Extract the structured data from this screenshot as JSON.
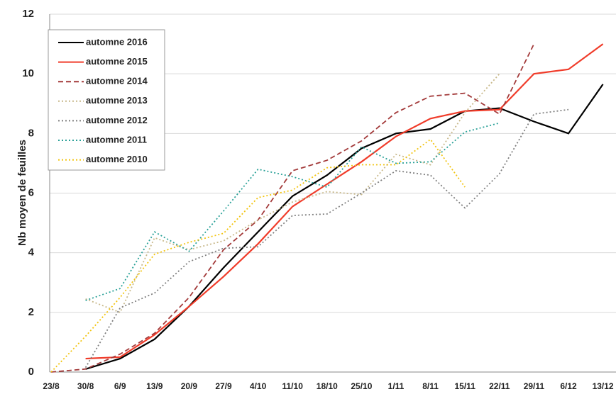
{
  "chart_data": {
    "type": "line",
    "y_label": "Nb moyen de feuilles",
    "categories": [
      "23/8",
      "30/8",
      "6/9",
      "13/9",
      "20/9",
      "27/9",
      "4/10",
      "11/10",
      "18/10",
      "25/10",
      "1/11",
      "8/11",
      "15/11",
      "22/11",
      "29/11",
      "6/12",
      "13/12"
    ],
    "ylim": [
      0,
      12
    ],
    "yticks": [
      0,
      2,
      4,
      6,
      8,
      10,
      12
    ],
    "grid": true,
    "legend": "upper left",
    "series": [
      {
        "name": "automne 2016",
        "color": "#000000",
        "dash": "solid",
        "values": [
          null,
          0.1,
          0.45,
          1.1,
          2.2,
          3.5,
          4.7,
          5.9,
          6.6,
          7.5,
          8.0,
          8.15,
          8.75,
          8.85,
          8.4,
          8.0,
          9.65
        ]
      },
      {
        "name": "automne 2015",
        "color": "#f03c2a",
        "dash": "solid",
        "values": [
          null,
          0.45,
          0.5,
          1.25,
          2.2,
          3.2,
          4.3,
          5.55,
          6.3,
          7.05,
          7.9,
          8.5,
          8.75,
          8.8,
          10.0,
          10.15,
          11.0
        ]
      },
      {
        "name": "automne 2014",
        "color": "#a33a3a",
        "dash": "dashed",
        "values": [
          0,
          0.1,
          0.6,
          1.3,
          2.5,
          4.1,
          5.1,
          6.75,
          7.1,
          7.75,
          8.7,
          9.25,
          9.35,
          8.65,
          11.0,
          null,
          null
        ]
      },
      {
        "name": "automne 2013",
        "color": "#c8b88a",
        "dash": "dotted",
        "values": [
          null,
          2.45,
          2.0,
          4.5,
          4.1,
          4.4,
          5.1,
          5.7,
          6.05,
          5.95,
          7.3,
          6.95,
          8.7,
          10.0,
          null,
          null,
          null
        ]
      },
      {
        "name": "automne 2012",
        "color": "#7f7f7f",
        "dash": "dotted",
        "values": [
          null,
          0.15,
          2.15,
          2.65,
          3.7,
          4.15,
          4.2,
          5.25,
          5.3,
          6.0,
          6.75,
          6.6,
          5.5,
          6.65,
          8.65,
          8.8,
          null
        ]
      },
      {
        "name": "automne 2011",
        "color": "#2aa198",
        "dash": "dotted",
        "values": [
          null,
          2.4,
          2.8,
          4.7,
          4.05,
          5.4,
          6.8,
          6.55,
          6.2,
          7.55,
          7.0,
          7.05,
          8.05,
          8.35,
          null,
          null,
          null
        ]
      },
      {
        "name": "automne 2010",
        "color": "#f2c40f",
        "dash": "dotted",
        "values": [
          0,
          1.2,
          2.5,
          3.95,
          4.35,
          4.65,
          5.85,
          6.1,
          6.85,
          6.95,
          6.95,
          7.8,
          6.2,
          null,
          null,
          null,
          null
        ]
      }
    ]
  }
}
